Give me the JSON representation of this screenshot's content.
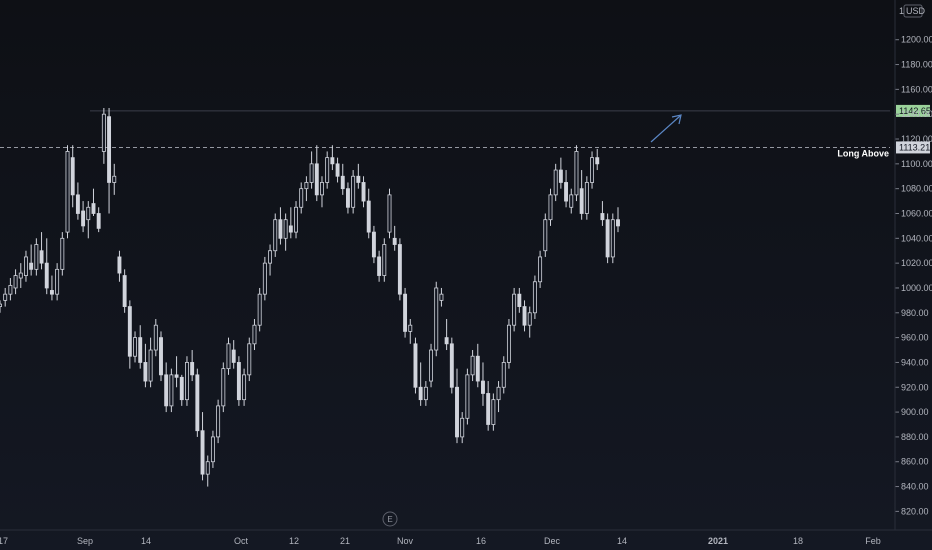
{
  "chart_data": {
    "type": "candlestick",
    "currency": "USD",
    "currency_prefix": "1",
    "y_axis": {
      "ylim": [
        805,
        1232
      ],
      "ticks": [
        820,
        840,
        860,
        880,
        900,
        920,
        940,
        960,
        980,
        1000,
        1020,
        1040,
        1060,
        1080,
        1100,
        1120,
        1140,
        1160,
        1180,
        1200
      ]
    },
    "x_ticks": [
      "17",
      "Sep",
      "14",
      "Oct",
      "12",
      "21",
      "Nov",
      "16",
      "Dec",
      "14",
      "2021",
      "18",
      "Feb"
    ],
    "price_labels": {
      "resistance": "1142.65",
      "long_level": "1113.21"
    },
    "levels": {
      "resistance": 1142.65,
      "long_level": 1113.21
    },
    "annotation": "Long Above",
    "event_marker": "E",
    "candle_color": "#d1d4dc",
    "resistance_label_color": "#9bd39b",
    "arrow_color": "#5b87c5",
    "candles": [
      [
        985,
        990,
        980,
        987
      ],
      [
        990,
        1000,
        985,
        995
      ],
      [
        995,
        1008,
        990,
        1002
      ],
      [
        1000,
        1015,
        995,
        1010
      ],
      [
        1008,
        1020,
        1000,
        1012
      ],
      [
        1010,
        1030,
        1005,
        1025
      ],
      [
        1020,
        1035,
        1010,
        1015
      ],
      [
        1015,
        1040,
        1010,
        1035
      ],
      [
        1030,
        1045,
        1015,
        1020
      ],
      [
        1020,
        1040,
        995,
        1000
      ],
      [
        998,
        1010,
        990,
        995
      ],
      [
        995,
        1020,
        990,
        1015
      ],
      [
        1015,
        1045,
        1010,
        1040
      ],
      [
        1045,
        1115,
        1040,
        1110
      ],
      [
        1105,
        1115,
        1065,
        1075
      ],
      [
        1075,
        1085,
        1055,
        1060
      ],
      [
        1062,
        1070,
        1045,
        1050
      ],
      [
        1055,
        1070,
        1040,
        1065
      ],
      [
        1068,
        1080,
        1058,
        1060
      ],
      [
        1060,
        1065,
        1045,
        1048
      ],
      [
        1110,
        1145,
        1100,
        1140
      ],
      [
        1138,
        1145,
        1060,
        1085
      ],
      [
        1085,
        1100,
        1075,
        1090
      ],
      [
        1025,
        1030,
        1005,
        1012
      ],
      [
        1010,
        1015,
        980,
        985
      ],
      [
        985,
        990,
        935,
        945
      ],
      [
        945,
        965,
        940,
        960
      ],
      [
        960,
        970,
        935,
        940
      ],
      [
        940,
        955,
        920,
        925
      ],
      [
        925,
        960,
        920,
        950
      ],
      [
        950,
        975,
        945,
        970
      ],
      [
        960,
        965,
        925,
        930
      ],
      [
        930,
        940,
        900,
        905
      ],
      [
        905,
        935,
        900,
        930
      ],
      [
        930,
        945,
        920,
        928
      ],
      [
        928,
        930,
        905,
        910
      ],
      [
        910,
        945,
        905,
        940
      ],
      [
        940,
        950,
        925,
        930
      ],
      [
        930,
        935,
        880,
        885
      ],
      [
        885,
        900,
        845,
        850
      ],
      [
        850,
        865,
        840,
        860
      ],
      [
        860,
        885,
        855,
        880
      ],
      [
        880,
        910,
        875,
        905
      ],
      [
        905,
        940,
        900,
        935
      ],
      [
        935,
        960,
        930,
        955
      ],
      [
        950,
        958,
        935,
        940
      ],
      [
        940,
        945,
        905,
        910
      ],
      [
        910,
        935,
        905,
        930
      ],
      [
        930,
        960,
        925,
        955
      ],
      [
        955,
        975,
        950,
        970
      ],
      [
        970,
        1000,
        965,
        995
      ],
      [
        995,
        1025,
        990,
        1020
      ],
      [
        1020,
        1035,
        1010,
        1030
      ],
      [
        1030,
        1060,
        1025,
        1055
      ],
      [
        1055,
        1065,
        1035,
        1040
      ],
      [
        1040,
        1060,
        1030,
        1055
      ],
      [
        1050,
        1065,
        1040,
        1045
      ],
      [
        1045,
        1070,
        1040,
        1065
      ],
      [
        1065,
        1085,
        1060,
        1080
      ],
      [
        1080,
        1090,
        1070,
        1085
      ],
      [
        1085,
        1110,
        1080,
        1100
      ],
      [
        1100,
        1115,
        1070,
        1075
      ],
      [
        1075,
        1090,
        1065,
        1085
      ],
      [
        1085,
        1110,
        1080,
        1105
      ],
      [
        1105,
        1115,
        1095,
        1100
      ],
      [
        1100,
        1105,
        1085,
        1090
      ],
      [
        1090,
        1100,
        1075,
        1080
      ],
      [
        1080,
        1085,
        1060,
        1065
      ],
      [
        1065,
        1095,
        1060,
        1090
      ],
      [
        1090,
        1100,
        1080,
        1085
      ],
      [
        1085,
        1090,
        1065,
        1070
      ],
      [
        1070,
        1080,
        1040,
        1045
      ],
      [
        1045,
        1050,
        1020,
        1025
      ],
      [
        1025,
        1030,
        1005,
        1010
      ],
      [
        1010,
        1040,
        1005,
        1035
      ],
      [
        1045,
        1080,
        1040,
        1075
      ],
      [
        1040,
        1050,
        1030,
        1035
      ],
      [
        1035,
        1040,
        990,
        995
      ],
      [
        995,
        1000,
        960,
        965
      ],
      [
        965,
        975,
        955,
        970
      ],
      [
        955,
        960,
        915,
        920
      ],
      [
        920,
        940,
        905,
        910
      ],
      [
        910,
        925,
        905,
        920
      ],
      [
        925,
        955,
        920,
        950
      ],
      [
        950,
        1005,
        945,
        1000
      ],
      [
        990,
        1000,
        985,
        995
      ],
      [
        960,
        975,
        950,
        955
      ],
      [
        955,
        960,
        915,
        920
      ],
      [
        920,
        935,
        875,
        880
      ],
      [
        880,
        900,
        875,
        895
      ],
      [
        895,
        935,
        890,
        930
      ],
      [
        930,
        950,
        925,
        945
      ],
      [
        945,
        955,
        920,
        925
      ],
      [
        925,
        940,
        905,
        915
      ],
      [
        915,
        925,
        885,
        890
      ],
      [
        890,
        915,
        885,
        910
      ],
      [
        910,
        925,
        900,
        920
      ],
      [
        920,
        945,
        915,
        940
      ],
      [
        940,
        975,
        935,
        970
      ],
      [
        970,
        1000,
        965,
        995
      ],
      [
        995,
        1000,
        980,
        985
      ],
      [
        985,
        990,
        965,
        970
      ],
      [
        970,
        985,
        960,
        980
      ],
      [
        980,
        1010,
        975,
        1005
      ],
      [
        1005,
        1030,
        1000,
        1025
      ],
      [
        1030,
        1060,
        1025,
        1055
      ],
      [
        1055,
        1080,
        1050,
        1075
      ],
      [
        1075,
        1100,
        1070,
        1095
      ],
      [
        1095,
        1105,
        1080,
        1085
      ],
      [
        1085,
        1095,
        1065,
        1070
      ],
      [
        1065,
        1080,
        1060,
        1075
      ],
      [
        1075,
        1115,
        1070,
        1110
      ],
      [
        1080,
        1095,
        1055,
        1060
      ],
      [
        1060,
        1090,
        1055,
        1085
      ],
      [
        1085,
        1110,
        1080,
        1105
      ],
      [
        1105,
        1112,
        1095,
        1100
      ],
      [
        1060,
        1070,
        1050,
        1055
      ],
      [
        1055,
        1060,
        1020,
        1025
      ],
      [
        1025,
        1060,
        1020,
        1055
      ],
      [
        1055,
        1065,
        1045,
        1050
      ]
    ]
  }
}
